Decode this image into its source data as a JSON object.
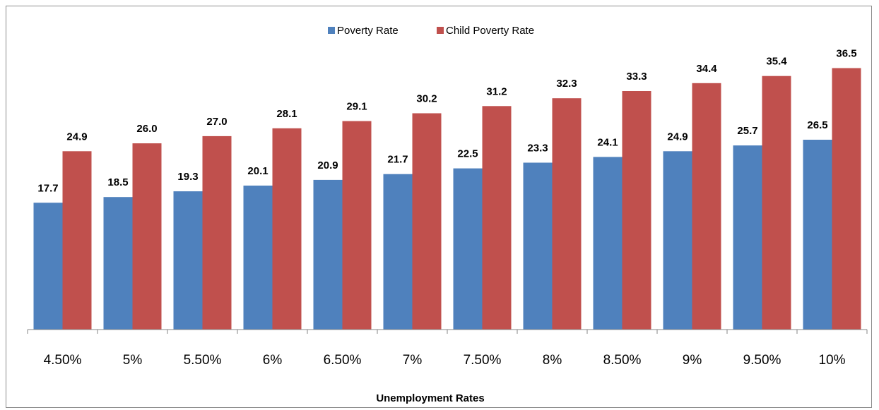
{
  "chart_data": {
    "type": "bar",
    "title": "",
    "xlabel": "Unemployment Rates",
    "ylabel": "",
    "categories": [
      "4.50%",
      "5%",
      "5.50%",
      "6%",
      "6.50%",
      "7%",
      "7.50%",
      "8%",
      "8.50%",
      "9%",
      "9.50%",
      "10%"
    ],
    "series": [
      {
        "name": "Poverty Rate",
        "color": "#4f81bd",
        "values": [
          17.7,
          18.5,
          19.3,
          20.1,
          20.9,
          21.7,
          22.5,
          23.3,
          24.1,
          24.9,
          25.7,
          26.5
        ],
        "labels": [
          "17.7",
          "18.5",
          "19.3",
          "20.1",
          "20.9",
          "21.7",
          "22.5",
          "23.3",
          "24.1",
          "24.9",
          "25.7",
          "26.5"
        ]
      },
      {
        "name": "Child Poverty Rate",
        "color": "#c0504d",
        "values": [
          24.9,
          26.0,
          27.0,
          28.1,
          29.1,
          30.2,
          31.2,
          32.3,
          33.3,
          34.4,
          35.4,
          36.5
        ],
        "labels": [
          "24.9",
          "26.0",
          "27.0",
          "28.1",
          "29.1",
          "30.2",
          "31.2",
          "32.3",
          "33.3",
          "34.4",
          "35.4",
          "36.5"
        ]
      }
    ],
    "ylim": [
      0,
      40
    ],
    "legend_position": "top-center",
    "grid": false,
    "data_labels": true
  }
}
